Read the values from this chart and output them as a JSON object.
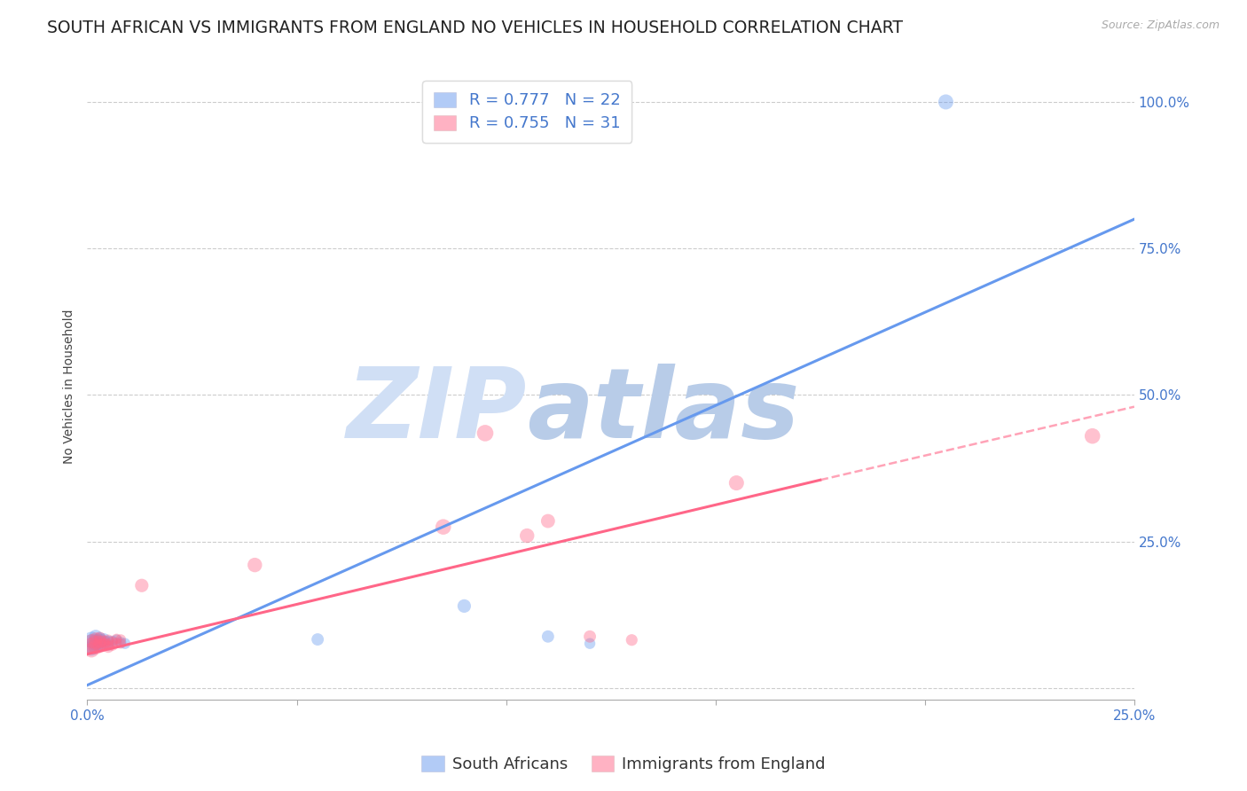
{
  "title": "SOUTH AFRICAN VS IMMIGRANTS FROM ENGLAND NO VEHICLES IN HOUSEHOLD CORRELATION CHART",
  "source": "Source: ZipAtlas.com",
  "ylabel": "No Vehicles in Household",
  "xlim": [
    0.0,
    0.25
  ],
  "ylim": [
    -0.02,
    1.05
  ],
  "xticks": [
    0.0,
    0.05,
    0.1,
    0.15,
    0.2,
    0.25
  ],
  "yticks": [
    0.0,
    0.25,
    0.5,
    0.75,
    1.0
  ],
  "xticklabels": [
    "0.0%",
    "",
    "",
    "",
    "",
    "25.0%"
  ],
  "yticklabels": [
    "",
    "25.0%",
    "50.0%",
    "75.0%",
    "100.0%"
  ],
  "background_color": "#ffffff",
  "watermark_zip": "ZIP",
  "watermark_atlas": "atlas",
  "watermark_color_zip": "#d0dff5",
  "watermark_color_atlas": "#b8cce8",
  "legend_label_blue": "R = 0.777   N = 22",
  "legend_label_pink": "R = 0.755   N = 31",
  "legend_bottom_blue": "South Africans",
  "legend_bottom_pink": "Immigrants from England",
  "blue_color": "#6699ee",
  "pink_color": "#ff6688",
  "blue_scatter": [
    [
      0.001,
      0.075
    ],
    [
      0.001,
      0.082
    ],
    [
      0.001,
      0.068
    ],
    [
      0.002,
      0.078
    ],
    [
      0.002,
      0.072
    ],
    [
      0.002,
      0.088
    ],
    [
      0.003,
      0.08
    ],
    [
      0.003,
      0.075
    ],
    [
      0.003,
      0.085
    ],
    [
      0.004,
      0.078
    ],
    [
      0.004,
      0.083
    ],
    [
      0.005,
      0.079
    ],
    [
      0.005,
      0.073
    ],
    [
      0.006,
      0.08
    ],
    [
      0.007,
      0.082
    ],
    [
      0.008,
      0.078
    ],
    [
      0.009,
      0.076
    ],
    [
      0.055,
      0.083
    ],
    [
      0.09,
      0.14
    ],
    [
      0.11,
      0.088
    ],
    [
      0.12,
      0.076
    ],
    [
      0.205,
      1.0
    ]
  ],
  "blue_sizes": [
    250,
    180,
    150,
    180,
    150,
    120,
    150,
    120,
    100,
    120,
    100,
    100,
    80,
    80,
    80,
    80,
    80,
    100,
    120,
    100,
    80,
    150
  ],
  "pink_scatter": [
    [
      0.001,
      0.072
    ],
    [
      0.001,
      0.065
    ],
    [
      0.001,
      0.08
    ],
    [
      0.002,
      0.07
    ],
    [
      0.002,
      0.078
    ],
    [
      0.002,
      0.084
    ],
    [
      0.003,
      0.072
    ],
    [
      0.003,
      0.079
    ],
    [
      0.003,
      0.086
    ],
    [
      0.004,
      0.074
    ],
    [
      0.004,
      0.08
    ],
    [
      0.004,
      0.076
    ],
    [
      0.005,
      0.07
    ],
    [
      0.005,
      0.082
    ],
    [
      0.005,
      0.075
    ],
    [
      0.006,
      0.073
    ],
    [
      0.006,
      0.079
    ],
    [
      0.007,
      0.077
    ],
    [
      0.007,
      0.084
    ],
    [
      0.008,
      0.076
    ],
    [
      0.008,
      0.083
    ],
    [
      0.013,
      0.175
    ],
    [
      0.04,
      0.21
    ],
    [
      0.085,
      0.275
    ],
    [
      0.095,
      0.435
    ],
    [
      0.105,
      0.26
    ],
    [
      0.11,
      0.285
    ],
    [
      0.12,
      0.088
    ],
    [
      0.13,
      0.082
    ],
    [
      0.155,
      0.35
    ],
    [
      0.24,
      0.43
    ]
  ],
  "pink_sizes": [
    180,
    150,
    130,
    150,
    130,
    110,
    130,
    110,
    90,
    110,
    90,
    80,
    90,
    80,
    70,
    80,
    70,
    70,
    70,
    70,
    70,
    120,
    140,
    160,
    180,
    140,
    130,
    100,
    90,
    150,
    160
  ],
  "blue_line": {
    "x0": 0.0,
    "y0": 0.005,
    "x1": 0.25,
    "y1": 0.8
  },
  "pink_line_solid": {
    "x0": 0.0,
    "y0": 0.058,
    "x1": 0.175,
    "y1": 0.355
  },
  "pink_line_dash": {
    "x0": 0.175,
    "y0": 0.355,
    "x1": 0.25,
    "y1": 0.48
  },
  "grid_color": "#cccccc",
  "tick_color": "#4477cc",
  "title_fontsize": 13.5,
  "axis_label_fontsize": 10,
  "tick_fontsize": 11
}
